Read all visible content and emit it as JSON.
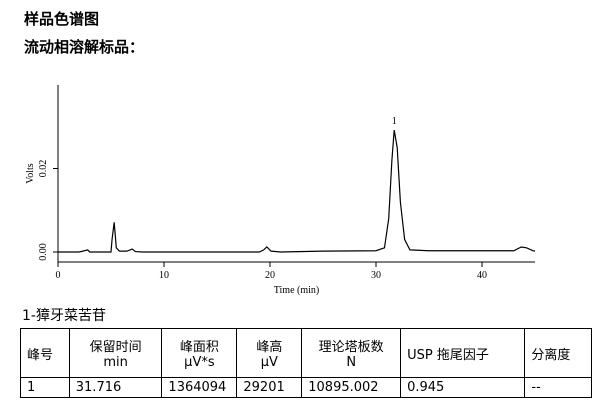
{
  "header": {
    "title": "样品色谱图",
    "subtitle": "流动相溶解标品："
  },
  "chart_data": {
    "type": "line",
    "xlabel": "Time (min)",
    "ylabel": "Volts",
    "xlim": [
      0,
      45
    ],
    "ylim": [
      -0.0024,
      0.04
    ],
    "xticks": [
      0,
      10,
      20,
      30,
      40
    ],
    "yticks": [
      {
        "value": 0,
        "label": "0.00"
      },
      {
        "value": 0.02,
        "label": "0.02"
      }
    ],
    "color": "#000000",
    "annotations": [
      {
        "x": 31.716,
        "y": 0.0292,
        "text": "1"
      }
    ],
    "x": [
      0,
      2,
      2.8,
      3,
      4,
      5,
      5.1,
      5.3,
      5.5,
      5.8,
      6.5,
      7,
      7.3,
      8,
      10,
      15,
      19,
      19.4,
      19.7,
      20.1,
      21,
      25,
      30,
      30.8,
      31.2,
      31.5,
      31.716,
      32,
      32.3,
      32.7,
      33.2,
      35,
      40,
      43,
      43.7,
      44.2,
      44.8,
      45
    ],
    "values": [
      0,
      0,
      0.0005,
      0,
      0,
      0,
      0.003,
      0.0071,
      0.001,
      0.0002,
      0.0002,
      0.0007,
      0.0001,
      0,
      0,
      0,
      0,
      0.0005,
      0.0012,
      0.0002,
      0,
      0.0002,
      0.0003,
      0.001,
      0.008,
      0.022,
      0.0292,
      0.025,
      0.012,
      0.003,
      0.0005,
      0.0003,
      0.0003,
      0.0003,
      0.0012,
      0.001,
      0.0003,
      0.0002
    ]
  },
  "table": {
    "caption": "1-獐牙菜苦苷",
    "header": [
      [
        "峰号"
      ],
      [
        "保留时间",
        "min"
      ],
      [
        "峰面积",
        "μV*s"
      ],
      [
        "峰高",
        "μV"
      ],
      [
        "理论塔板数",
        "N"
      ],
      [
        "USP 拖尾因子"
      ],
      [
        "分离度"
      ]
    ],
    "rows": [
      [
        "1",
        "31.716",
        "1364094",
        "29201",
        "10895.002",
        "0.945",
        "--"
      ]
    ]
  }
}
